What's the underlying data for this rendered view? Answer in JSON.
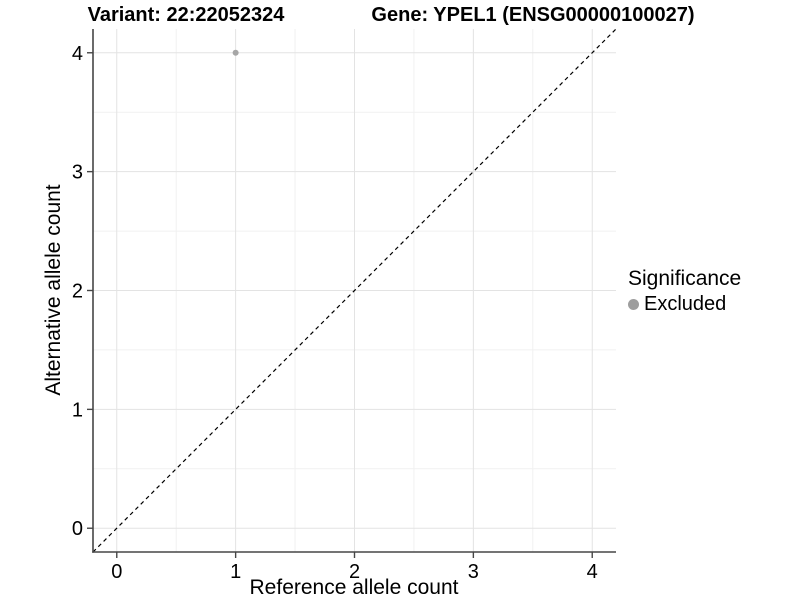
{
  "chart_data": {
    "type": "scatter",
    "titles": {
      "left": "Variant: 22:22052324",
      "right": "Gene: YPEL1 (ENSG00000100027)"
    },
    "xlabel": "Reference allele count",
    "ylabel": "Alternative allele count",
    "xlim": [
      -0.2,
      4.2
    ],
    "ylim": [
      -0.2,
      4.2
    ],
    "x_ticks": [
      0,
      1,
      2,
      3,
      4
    ],
    "y_ticks": [
      0,
      1,
      2,
      3,
      4
    ],
    "minor_ticks_x": [
      0.5,
      1.5,
      2.5,
      3.5
    ],
    "minor_ticks_y": [
      0.5,
      1.5,
      2.5,
      3.5
    ],
    "grid": true,
    "points": [
      {
        "x": 1,
        "y": 4,
        "series": "Excluded",
        "color": "#a6a6a6"
      }
    ],
    "reference_line": {
      "slope": 1,
      "intercept": 0,
      "style": "dashed",
      "color": "#000000"
    },
    "legend": {
      "title": "Significance",
      "position": "right",
      "entries": [
        {
          "label": "Excluded",
          "color": "#9e9e9e",
          "marker": "circle"
        }
      ]
    },
    "colors": {
      "grid_major": "#e3e3e3",
      "grid_minor": "#f1f1f1",
      "axis": "#464646",
      "text": "#000000"
    }
  }
}
